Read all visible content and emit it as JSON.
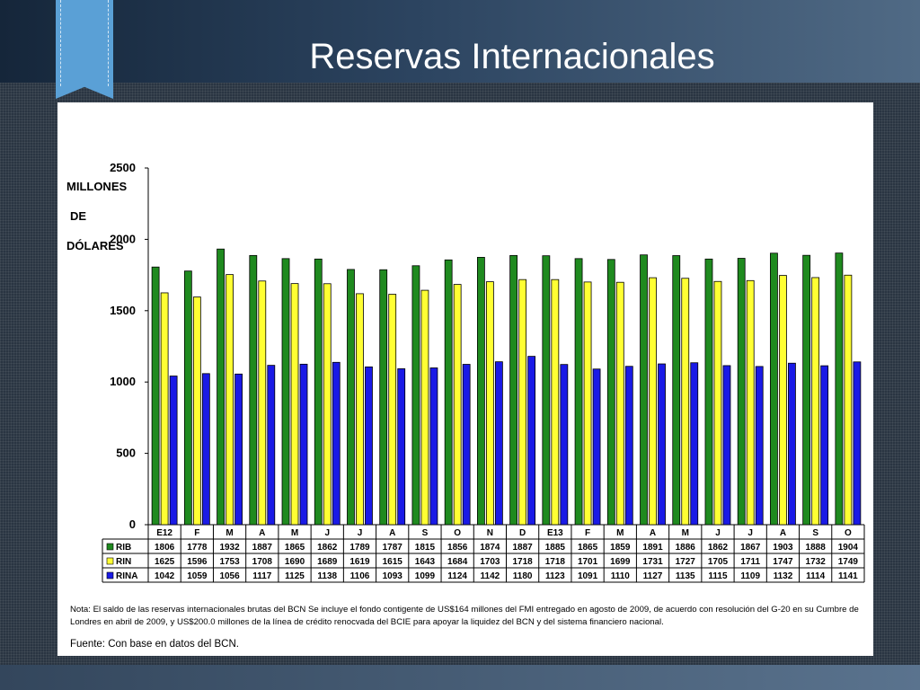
{
  "slide": {
    "title": "Reservas Internacionales"
  },
  "chart_data": {
    "type": "bar",
    "ylabel": "MILLONES\n\nDE\n\nDÓLARES",
    "ylim": [
      0,
      2500
    ],
    "yticks": [
      0,
      500,
      1000,
      1500,
      2000,
      2500
    ],
    "grid": false,
    "legend": "data-table-left",
    "categories": [
      "E12",
      "F",
      "M",
      "A",
      "M",
      "J",
      "J",
      "A",
      "S",
      "O",
      "N",
      "D",
      "E13",
      "F",
      "M",
      "A",
      "M",
      "J",
      "J",
      "A",
      "S",
      "O"
    ],
    "series": [
      {
        "name": "RIB",
        "color": "#1f8a1f",
        "values": [
          1806,
          1778,
          1932,
          1887,
          1865,
          1862,
          1789,
          1787,
          1815,
          1856,
          1874,
          1887,
          1885,
          1865,
          1859,
          1891,
          1886,
          1862,
          1867,
          1903,
          1888,
          1904
        ]
      },
      {
        "name": "RIN",
        "color": "#ffff33",
        "values": [
          1625,
          1596,
          1753,
          1708,
          1690,
          1689,
          1619,
          1615,
          1643,
          1684,
          1703,
          1718,
          1718,
          1701,
          1699,
          1731,
          1727,
          1705,
          1711,
          1747,
          1732,
          1749
        ]
      },
      {
        "name": "RINA",
        "color": "#1a1ae6",
        "values": [
          1042,
          1059,
          1056,
          1117,
          1125,
          1138,
          1106,
          1093,
          1099,
          1124,
          1142,
          1180,
          1123,
          1091,
          1110,
          1127,
          1135,
          1115,
          1109,
          1132,
          1114,
          1141
        ]
      }
    ]
  },
  "notes": {
    "note_text": "Nota: El saldo de las reservas internacionales brutas del BCN Se incluye el fondo contigente de US$164 millones del FMI entregado en agosto de 2009, de acuerdo con resolución del G-20 en su Cumbre de Londres en abril de 2009, y US$200.0 millones de la línea de crédito renocvada del BCIE para apoyar la liquidez del BCN y del sistema financiero nacional.",
    "source_text": "Fuente: Con base en datos del BCN."
  }
}
